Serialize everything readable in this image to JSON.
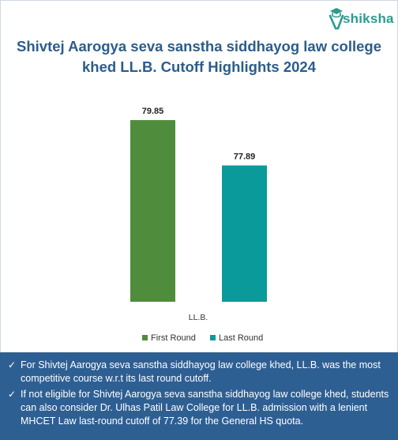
{
  "brand": {
    "logo_text": "shiksha",
    "logo_icon": "graduation-cap-icon"
  },
  "chart_data": {
    "type": "bar",
    "title": "Shivtej Aarogya seva sanstha siddhayog law college khed LL.B. Cutoff Highlights 2024",
    "categories": [
      "LL.B."
    ],
    "series": [
      {
        "name": "First Round",
        "values": [
          79.85
        ],
        "color": "#4f8d3c"
      },
      {
        "name": "Last Round",
        "values": [
          77.89
        ],
        "color": "#0a9a9a"
      }
    ],
    "ylim": [
      72,
      80.5
    ],
    "legend": "bottom",
    "grid": false
  },
  "notes": [
    "For Shivtej Aarogya seva sanstha siddhayog law college khed, LL.B. was the most competitive course w.r.t its last round cutoff.",
    "If not eligible for Shivtej Aarogya seva sanstha siddhayog law college khed, students can also consider Dr. Ulhas Patil Law College for LL.B. admission with a lenient MHCET Law last-round cutoff of 77.39 for the General HS quota."
  ]
}
